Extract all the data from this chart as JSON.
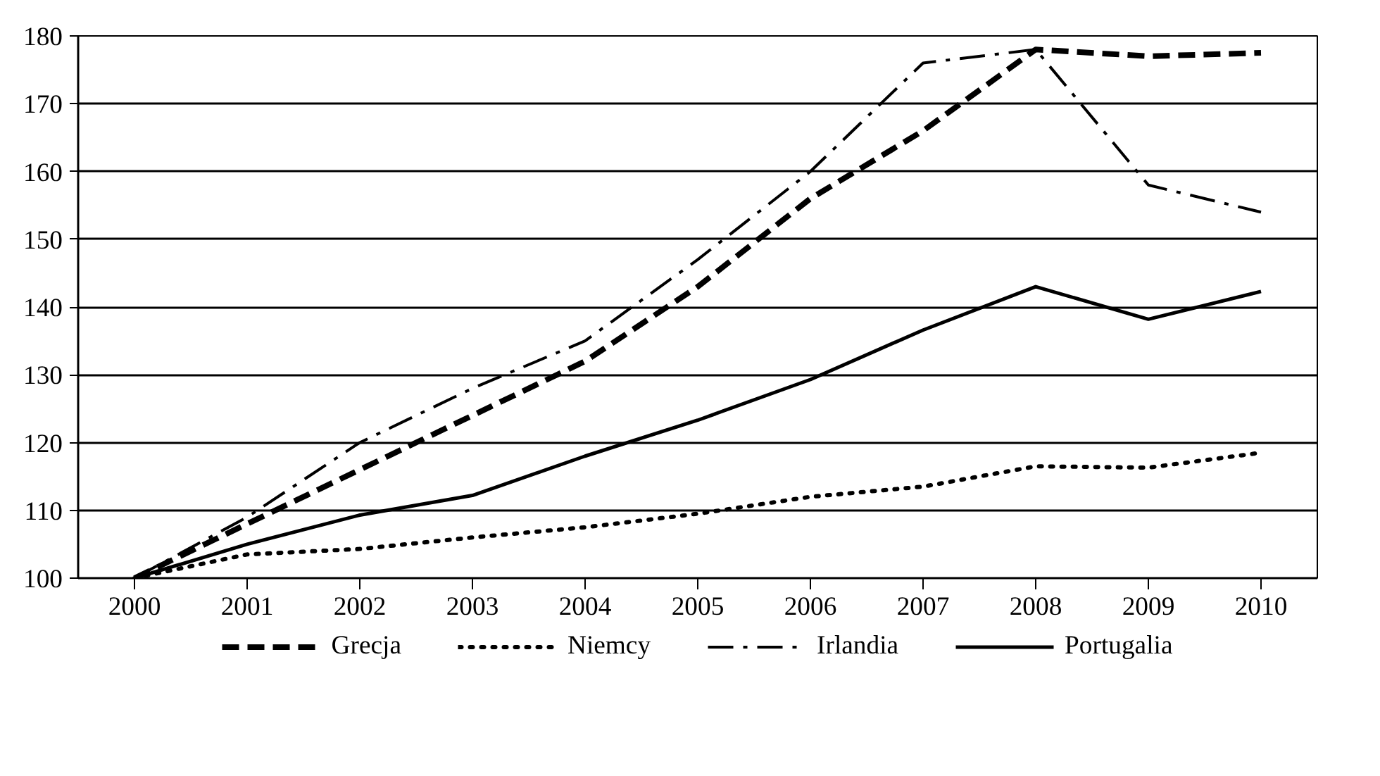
{
  "chart_data": {
    "type": "line",
    "categories": [
      "2000",
      "2001",
      "2002",
      "2003",
      "2004",
      "2005",
      "2006",
      "2007",
      "2008",
      "2009",
      "2010"
    ],
    "series": [
      {
        "name": "Grecja",
        "color": "#000000",
        "line_style": "dashed",
        "values": [
          100,
          108,
          116,
          124,
          132,
          143,
          156,
          166,
          178,
          177,
          177.5
        ]
      },
      {
        "name": "Niemcy",
        "color": "#000000",
        "line_style": "dotted",
        "values": [
          100,
          103.5,
          104.3,
          106,
          107.5,
          109.5,
          112,
          113.5,
          116.5,
          116.3,
          118.5
        ]
      },
      {
        "name": "Irlandia",
        "color": "#000000",
        "line_style": "dashdot",
        "values": [
          100,
          109,
          120,
          128,
          135,
          147,
          160,
          176,
          178,
          158,
          154
        ]
      },
      {
        "name": "Portugalia",
        "color": "#000000",
        "line_style": "solid",
        "values": [
          100,
          105,
          109.3,
          112.2,
          118,
          123.3,
          129.3,
          136.6,
          143,
          138.2,
          142.3
        ]
      }
    ],
    "ylim": [
      100,
      180
    ],
    "yticks": [
      100,
      110,
      120,
      130,
      140,
      150,
      160,
      170,
      180
    ],
    "grid": "y",
    "legend": "bottom",
    "marker": "none"
  }
}
